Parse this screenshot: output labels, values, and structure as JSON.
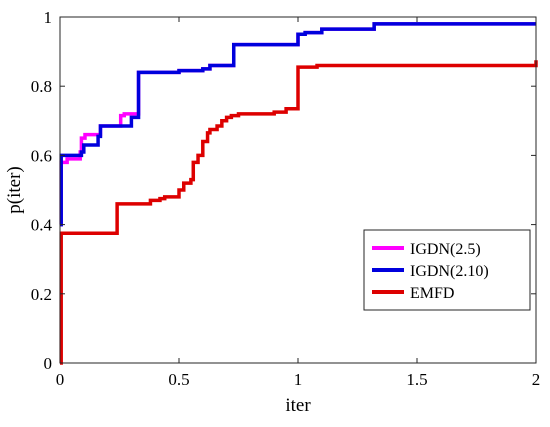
{
  "chart_data": {
    "type": "line",
    "title": "",
    "xlabel": "iter",
    "ylabel": "p(iter)",
    "xlim": [
      0,
      2
    ],
    "ylim": [
      0,
      1
    ],
    "xticks": [
      0,
      0.5,
      1,
      1.5,
      2
    ],
    "yticks": [
      0,
      0.2,
      0.4,
      0.6,
      0.8,
      1
    ],
    "xtick_labels": [
      "0",
      "0.5",
      "1",
      "1.5",
      "2"
    ],
    "ytick_labels": [
      "0",
      "0.2",
      "0.4",
      "0.6",
      "0.8",
      "1"
    ],
    "grid": false,
    "step": true,
    "legend_position": "lower-right",
    "series": [
      {
        "name": "IGDN(2.5)",
        "color": "#ff00ff",
        "x": [
          0,
          0.005,
          0.03,
          0.085,
          0.09,
          0.105,
          0.155,
          0.17,
          0.255,
          0.27,
          0.31,
          0.33,
          0.5,
          0.6,
          0.63,
          0.73,
          1.0,
          1.03,
          1.1,
          1.32,
          2.0
        ],
        "y": [
          0.4,
          0.58,
          0.59,
          0.61,
          0.65,
          0.66,
          0.66,
          0.685,
          0.715,
          0.72,
          0.72,
          0.84,
          0.845,
          0.85,
          0.86,
          0.92,
          0.95,
          0.955,
          0.965,
          0.98,
          0.98
        ]
      },
      {
        "name": "IGDN(2.10)",
        "color": "#0000dd",
        "x": [
          0,
          0.005,
          0.09,
          0.1,
          0.16,
          0.17,
          0.24,
          0.28,
          0.3,
          0.33,
          0.5,
          0.6,
          0.63,
          0.73,
          1.0,
          1.03,
          1.1,
          1.32,
          2.0
        ],
        "y": [
          0.4,
          0.6,
          0.61,
          0.63,
          0.655,
          0.685,
          0.685,
          0.685,
          0.71,
          0.84,
          0.845,
          0.85,
          0.86,
          0.92,
          0.95,
          0.955,
          0.965,
          0.98,
          0.98
        ]
      },
      {
        "name": "EMFD",
        "color": "#dd0000",
        "x": [
          0,
          0.005,
          0.22,
          0.24,
          0.36,
          0.38,
          0.42,
          0.44,
          0.46,
          0.5,
          0.52,
          0.55,
          0.56,
          0.58,
          0.6,
          0.62,
          0.63,
          0.66,
          0.68,
          0.7,
          0.72,
          0.75,
          0.9,
          0.95,
          1.0,
          1.05,
          1.08,
          1.2,
          2.0
        ],
        "y": [
          0.0,
          0.375,
          0.375,
          0.46,
          0.46,
          0.47,
          0.475,
          0.48,
          0.48,
          0.5,
          0.52,
          0.53,
          0.58,
          0.6,
          0.64,
          0.665,
          0.675,
          0.685,
          0.7,
          0.71,
          0.715,
          0.72,
          0.725,
          0.735,
          0.855,
          0.855,
          0.86,
          0.86,
          0.875
        ]
      }
    ]
  }
}
